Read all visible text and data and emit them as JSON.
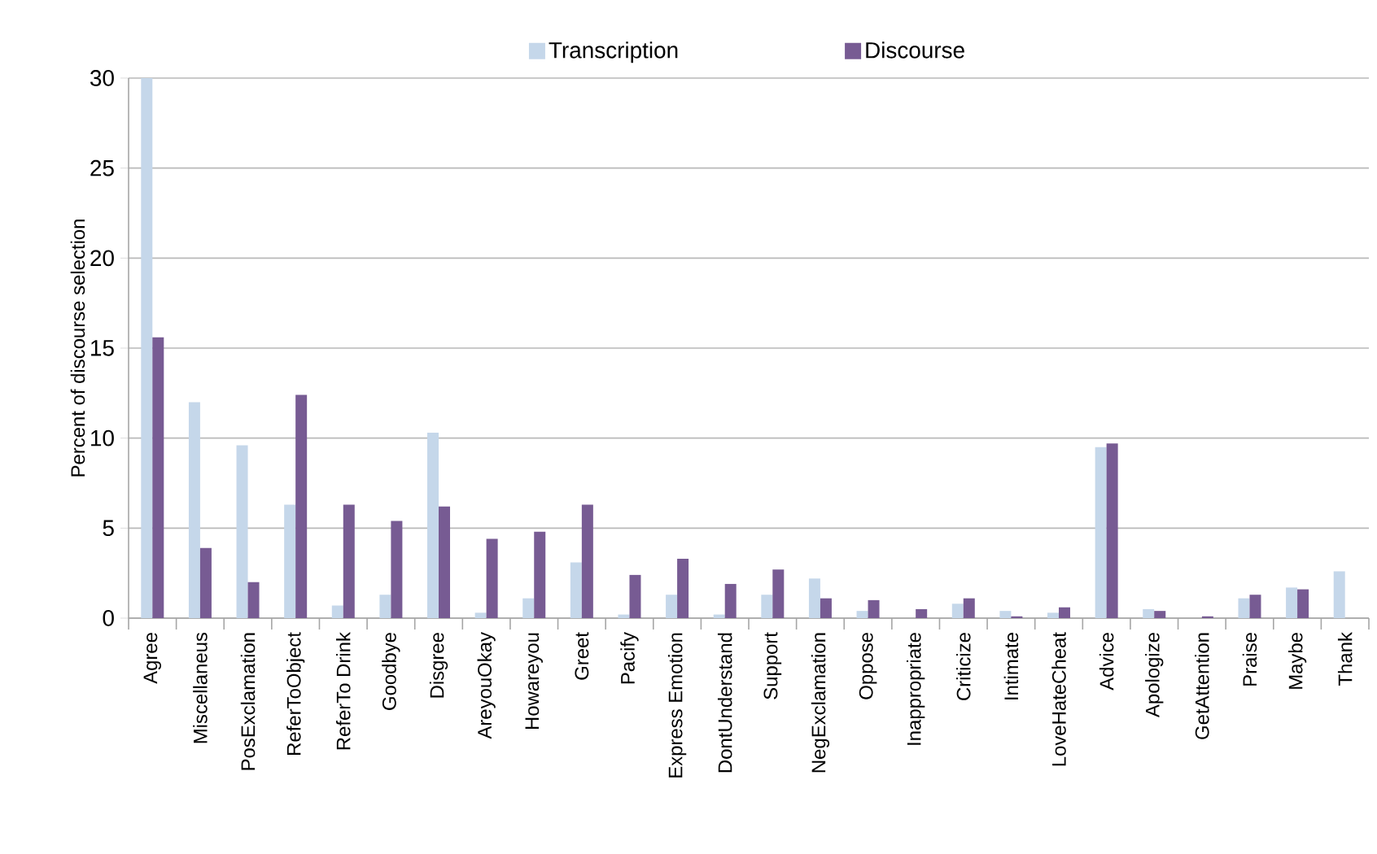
{
  "chart_data": {
    "type": "bar",
    "ylabel": "Percent of discourse selection",
    "categories": [
      "Agree",
      "Miscellaneus",
      "PosExclamation",
      "ReferToObject",
      "ReferTo Drink",
      "Goodbye",
      "Disgree",
      "AreyouOkay",
      "Howareyou",
      "Greet",
      "Pacify",
      "Express Emotion",
      "DontUnderstand",
      "Support",
      "NegExclamation",
      "Oppose",
      "Inappropriate",
      "Criticize",
      "Intimate",
      "LoveHateCheat",
      "Advice",
      "Apologize",
      "GetAttention",
      "Praise",
      "Maybe",
      "Thank"
    ],
    "series": [
      {
        "name": "Transcription",
        "color": "#c5d7ea",
        "values": [
          30,
          12.0,
          9.6,
          6.3,
          0.7,
          1.3,
          10.3,
          0.3,
          1.1,
          3.1,
          0.2,
          1.3,
          0.2,
          1.3,
          2.2,
          0.4,
          0,
          0.8,
          0.4,
          0.3,
          9.5,
          0.5,
          null,
          1.1,
          1.7,
          2.6
        ]
      },
      {
        "name": "Discourse",
        "color": "#775b93",
        "values": [
          15.6,
          3.9,
          2.0,
          12.4,
          6.3,
          5.4,
          6.2,
          4.4,
          4.8,
          6.3,
          2.4,
          3.3,
          1.9,
          2.7,
          1.1,
          1.0,
          0.5,
          1.1,
          0.1,
          0.6,
          9.7,
          0.4,
          0.1,
          1.3,
          1.6,
          null
        ]
      }
    ],
    "ylim": [
      0,
      30
    ],
    "yticks": [
      0,
      5,
      10,
      15,
      20,
      25,
      30
    ],
    "grid": "y",
    "legend": "top"
  }
}
